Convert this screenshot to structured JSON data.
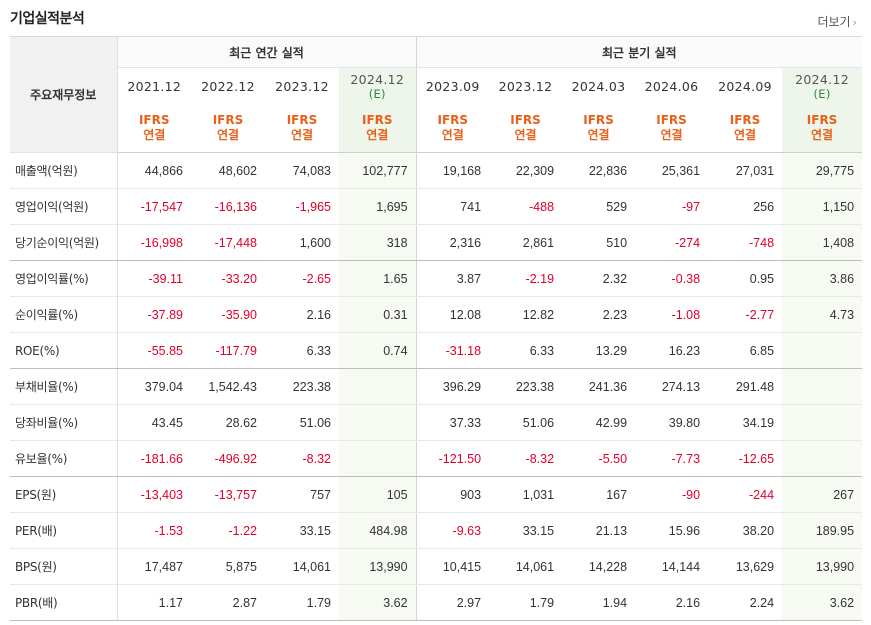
{
  "header": {
    "title": "기업실적분석",
    "more_label": "더보기"
  },
  "table": {
    "stub_header": "주요재무정보",
    "group_annual": "최근 연간 실적",
    "group_quarter": "최근 분기 실적",
    "annual_periods": [
      {
        "label": "2021.12",
        "est": ""
      },
      {
        "label": "2022.12",
        "est": ""
      },
      {
        "label": "2023.12",
        "est": ""
      },
      {
        "label": "2024.12",
        "est": "(E)"
      }
    ],
    "quarter_periods": [
      {
        "label": "2023.09",
        "est": ""
      },
      {
        "label": "2023.12",
        "est": ""
      },
      {
        "label": "2024.03",
        "est": ""
      },
      {
        "label": "2024.06",
        "est": ""
      },
      {
        "label": "2024.09",
        "est": ""
      },
      {
        "label": "2024.12",
        "est": "(E)"
      }
    ],
    "basis_top": "IFRS",
    "basis_bottom": "연결",
    "rows": [
      {
        "label": "매출액(억원)",
        "values": [
          "44,866",
          "48,602",
          "74,083",
          "102,777",
          "19,168",
          "22,309",
          "22,836",
          "25,361",
          "27,031",
          "29,775"
        ]
      },
      {
        "label": "영업이익(억원)",
        "values": [
          "-17,547",
          "-16,136",
          "-1,965",
          "1,695",
          "741",
          "-488",
          "529",
          "-97",
          "256",
          "1,150"
        ]
      },
      {
        "label": "당기순이익(억원)",
        "values": [
          "-16,998",
          "-17,448",
          "1,600",
          "318",
          "2,316",
          "2,861",
          "510",
          "-274",
          "-748",
          "1,408"
        ]
      },
      {
        "label": "영업이익률(%)",
        "values": [
          "-39.11",
          "-33.20",
          "-2.65",
          "1.65",
          "3.87",
          "-2.19",
          "2.32",
          "-0.38",
          "0.95",
          "3.86"
        ]
      },
      {
        "label": "순이익률(%)",
        "values": [
          "-37.89",
          "-35.90",
          "2.16",
          "0.31",
          "12.08",
          "12.82",
          "2.23",
          "-1.08",
          "-2.77",
          "4.73"
        ]
      },
      {
        "label": "ROE(%)",
        "values": [
          "-55.85",
          "-117.79",
          "6.33",
          "0.74",
          "-31.18",
          "6.33",
          "13.29",
          "16.23",
          "6.85",
          ""
        ]
      },
      {
        "label": "부채비율(%)",
        "values": [
          "379.04",
          "1,542.43",
          "223.38",
          "",
          "396.29",
          "223.38",
          "241.36",
          "274.13",
          "291.48",
          ""
        ]
      },
      {
        "label": "당좌비율(%)",
        "values": [
          "43.45",
          "28.62",
          "51.06",
          "",
          "37.33",
          "51.06",
          "42.99",
          "39.80",
          "34.19",
          ""
        ]
      },
      {
        "label": "유보율(%)",
        "values": [
          "-181.66",
          "-496.92",
          "-8.32",
          "",
          "-121.50",
          "-8.32",
          "-5.50",
          "-7.73",
          "-12.65",
          ""
        ]
      },
      {
        "label": "EPS(원)",
        "values": [
          "-13,403",
          "-13,757",
          "757",
          "105",
          "903",
          "1,031",
          "167",
          "-90",
          "-244",
          "267"
        ]
      },
      {
        "label": "PER(배)",
        "values": [
          "-1.53",
          "-1.22",
          "33.15",
          "484.98",
          "-9.63",
          "33.15",
          "21.13",
          "15.96",
          "38.20",
          "189.95"
        ]
      },
      {
        "label": "BPS(원)",
        "values": [
          "17,487",
          "5,875",
          "14,061",
          "13,990",
          "10,415",
          "14,061",
          "14,228",
          "14,144",
          "13,629",
          "13,990"
        ]
      },
      {
        "label": "PBR(배)",
        "values": [
          "1.17",
          "2.87",
          "1.79",
          "3.62",
          "2.97",
          "1.79",
          "1.94",
          "2.16",
          "2.24",
          "3.62"
        ]
      }
    ]
  },
  "colors": {
    "negative": "#e0002a",
    "basis": "#e8611b",
    "estimate": "#2e8b3a",
    "estimate_bg": "#eef5ea"
  }
}
